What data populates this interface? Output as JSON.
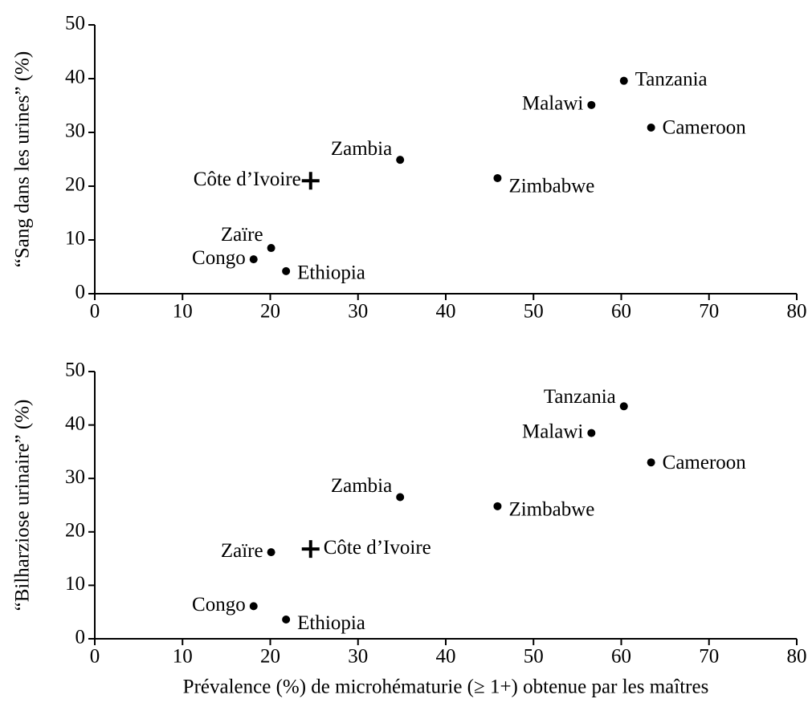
{
  "chart_data": [
    {
      "type": "scatter",
      "ylabel": "“Sang dans les urines” (%)",
      "labels": [
        "Tanzania",
        "Malawi",
        "Cameroon",
        "Zambia",
        "Zimbabwe",
        "Côte d’Ivoire",
        "Zaïre",
        "Congo",
        "Ethiopia"
      ],
      "x": [
        60.3,
        56.6,
        63.4,
        34.8,
        45.9,
        24.6,
        20.1,
        18.1,
        21.8
      ],
      "values": [
        39.6,
        35.1,
        30.9,
        24.9,
        21.5,
        21.0,
        8.5,
        6.4,
        4.2
      ],
      "markers": [
        "circle",
        "circle",
        "circle",
        "circle",
        "circle",
        "plus",
        "circle",
        "circle",
        "circle"
      ],
      "color": "#000000",
      "xlim": [
        0,
        80
      ],
      "xticks": [
        0,
        10,
        20,
        30,
        40,
        50,
        60,
        70,
        80
      ],
      "ylim": [
        0,
        50
      ],
      "yticks": [
        0,
        10,
        20,
        30,
        40,
        50
      ]
    },
    {
      "type": "scatter",
      "ylabel": "“Bilharziose urinaire” (%)",
      "xlabel": "Prévalence (%) de microhématurie (≥ 1+) obtenue par les maîtres",
      "labels": [
        "Tanzania",
        "Malawi",
        "Cameroon",
        "Zambia",
        "Zimbabwe",
        "Zaïre",
        "Côte d’Ivoire",
        "Congo",
        "Ethiopia"
      ],
      "x": [
        60.3,
        56.6,
        63.4,
        34.8,
        45.9,
        20.1,
        24.6,
        18.1,
        21.8
      ],
      "values": [
        43.5,
        38.5,
        33.0,
        26.5,
        24.8,
        16.2,
        16.8,
        6.1,
        3.6
      ],
      "markers": [
        "circle",
        "circle",
        "circle",
        "circle",
        "circle",
        "circle",
        "plus",
        "circle",
        "circle"
      ],
      "color": "#000000",
      "xlim": [
        0,
        80
      ],
      "xticks": [
        0,
        10,
        20,
        30,
        40,
        50,
        60,
        70,
        80
      ],
      "ylim": [
        0,
        50
      ],
      "yticks": [
        0,
        10,
        20,
        30,
        40,
        50
      ]
    }
  ]
}
